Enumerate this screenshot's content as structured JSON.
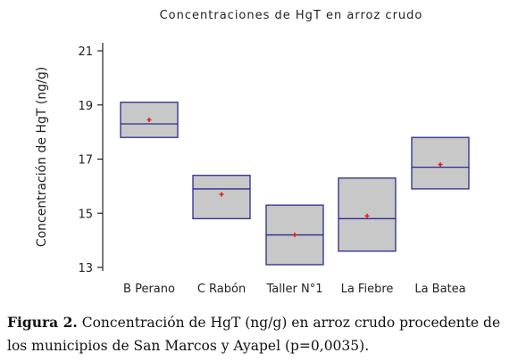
{
  "chart_data": {
    "type": "box",
    "title": "Concentraciones de HgT en arroz crudo",
    "ylabel": "Concentración de HgT (ng/g)",
    "xlabel": "",
    "ylim": [
      12.8,
      21.3
    ],
    "yticks": [
      "13",
      "15",
      "17",
      "19",
      "21"
    ],
    "ytick_values": [
      13,
      15,
      17,
      19,
      21
    ],
    "grid": false,
    "box_fill": "#c8c8c8",
    "box_stroke": "#2b2b8f",
    "mean_color": "#e0201b",
    "categories": [
      "B Perano",
      "C Rabón",
      "Taller N°1",
      "La Fiebre",
      "La Batea"
    ],
    "boxes": [
      {
        "low": 17.8,
        "high": 19.1,
        "median": 18.3,
        "mean": 18.45
      },
      {
        "low": 14.8,
        "high": 16.4,
        "median": 15.9,
        "mean": 15.7
      },
      {
        "low": 13.1,
        "high": 15.3,
        "median": 14.2,
        "mean": 14.2
      },
      {
        "low": 13.6,
        "high": 16.3,
        "median": 14.8,
        "mean": 14.9
      },
      {
        "low": 15.9,
        "high": 17.8,
        "median": 16.7,
        "mean": 16.8
      }
    ]
  },
  "caption": {
    "label": "Figura 2.",
    "text": " Concentración de HgT (ng/g) en arroz crudo procedente de los municipios de San Marcos  y Ayapel (p=0,0035)."
  }
}
